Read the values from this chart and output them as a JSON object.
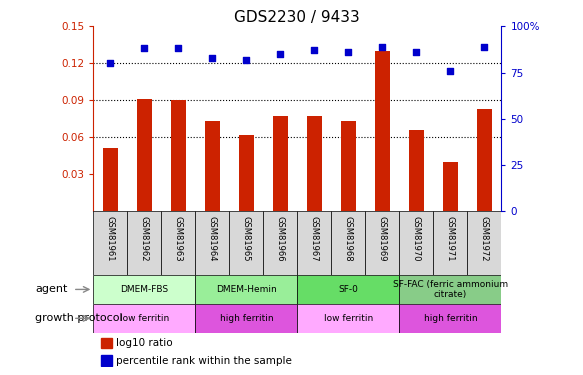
{
  "title": "GDS2230 / 9433",
  "samples": [
    "GSM81961",
    "GSM81962",
    "GSM81963",
    "GSM81964",
    "GSM81965",
    "GSM81966",
    "GSM81967",
    "GSM81968",
    "GSM81969",
    "GSM81970",
    "GSM81971",
    "GSM81972"
  ],
  "log10_ratio": [
    0.051,
    0.091,
    0.09,
    0.073,
    0.062,
    0.077,
    0.077,
    0.073,
    0.13,
    0.066,
    0.04,
    0.083
  ],
  "percentile_rank": [
    80,
    88,
    88,
    83,
    82,
    85,
    87,
    86,
    89,
    86,
    76,
    89
  ],
  "ylim_left": [
    0.0,
    0.15
  ],
  "ylim_right": [
    0,
    100
  ],
  "yticks_left": [
    0.03,
    0.06,
    0.09,
    0.12,
    0.15
  ],
  "ytick_left_labels": [
    "0.03",
    "0.06",
    "0.09",
    "0.12",
    "0.15"
  ],
  "yticks_right": [
    0,
    25,
    50,
    75,
    100
  ],
  "ytick_right_labels": [
    "0",
    "25",
    "50",
    "75",
    "100%"
  ],
  "bar_color": "#cc2200",
  "scatter_color": "#0000cc",
  "agent_groups": [
    {
      "label": "DMEM-FBS",
      "start": 0,
      "end": 3,
      "color": "#ccffcc"
    },
    {
      "label": "DMEM-Hemin",
      "start": 3,
      "end": 6,
      "color": "#99ee99"
    },
    {
      "label": "SF-0",
      "start": 6,
      "end": 9,
      "color": "#66dd66"
    },
    {
      "label": "SF-FAC (ferric ammonium\ncitrate)",
      "start": 9,
      "end": 12,
      "color": "#88cc88"
    }
  ],
  "growth_groups": [
    {
      "label": "low ferritin",
      "start": 0,
      "end": 3,
      "color": "#ffaaff"
    },
    {
      "label": "high ferritin",
      "start": 3,
      "end": 6,
      "color": "#dd55dd"
    },
    {
      "label": "low ferritin",
      "start": 6,
      "end": 9,
      "color": "#ffaaff"
    },
    {
      "label": "high ferritin",
      "start": 9,
      "end": 12,
      "color": "#dd55dd"
    }
  ],
  "agent_label": "agent",
  "growth_label": "growth protocol",
  "legend_bar": "log10 ratio",
  "legend_scatter": "percentile rank within the sample",
  "grid_dotted_values": [
    0.06,
    0.09,
    0.12
  ],
  "title_fontsize": 11,
  "tick_fontsize": 7.5,
  "label_fontsize": 8,
  "bar_width": 0.45
}
